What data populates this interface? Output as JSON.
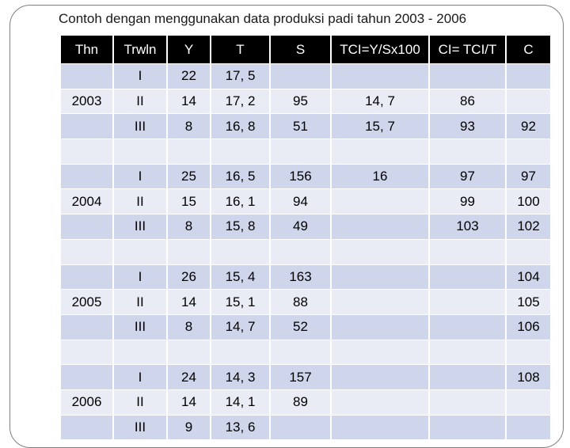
{
  "title": "Contoh dengan menggunakan data produksi padi tahun 2003 - 2006",
  "table": {
    "headers": [
      "Thn",
      "Trwln",
      "Y",
      "T",
      "S",
      "TCI=Y/Sx100",
      "CI= TCI/T",
      "C"
    ],
    "rows": [
      [
        "",
        "I",
        "22",
        "17, 5",
        "",
        "",
        "",
        ""
      ],
      [
        "2003",
        "II",
        "14",
        "17, 2",
        "95",
        "14, 7",
        "86",
        ""
      ],
      [
        "",
        "III",
        "8",
        "16, 8",
        "51",
        "15, 7",
        "93",
        "92"
      ],
      [
        "",
        "",
        "",
        "",
        "",
        "",
        "",
        ""
      ],
      [
        "",
        "I",
        "25",
        "16, 5",
        "156",
        "16",
        "97",
        "97"
      ],
      [
        "2004",
        "II",
        "15",
        "16, 1",
        "94",
        "",
        "99",
        "100"
      ],
      [
        "",
        "III",
        "8",
        "15, 8",
        "49",
        "",
        "103",
        "102"
      ],
      [
        "",
        "",
        "",
        "",
        "",
        "",
        "",
        ""
      ],
      [
        "",
        "I",
        "26",
        "15, 4",
        "163",
        "",
        "",
        "104"
      ],
      [
        "2005",
        "II",
        "14",
        "15, 1",
        "88",
        "",
        "",
        "105"
      ],
      [
        "",
        "III",
        "8",
        "14, 7",
        "52",
        "",
        "",
        "106"
      ],
      [
        "",
        "",
        "",
        "",
        "",
        "",
        "",
        ""
      ],
      [
        "",
        "I",
        "24",
        "14, 3",
        "157",
        "",
        "",
        "108"
      ],
      [
        "2006",
        "II",
        "14",
        "14, 1",
        "89",
        "",
        "",
        ""
      ],
      [
        "",
        "III",
        "9",
        "13, 6",
        "",
        "",
        "",
        ""
      ]
    ]
  },
  "colors": {
    "header_bg": "#000000",
    "header_text": "#ffffff",
    "band_a": "#cfd5ea",
    "band_b": "#e9ebf5",
    "frame": "#7f7f7f"
  }
}
